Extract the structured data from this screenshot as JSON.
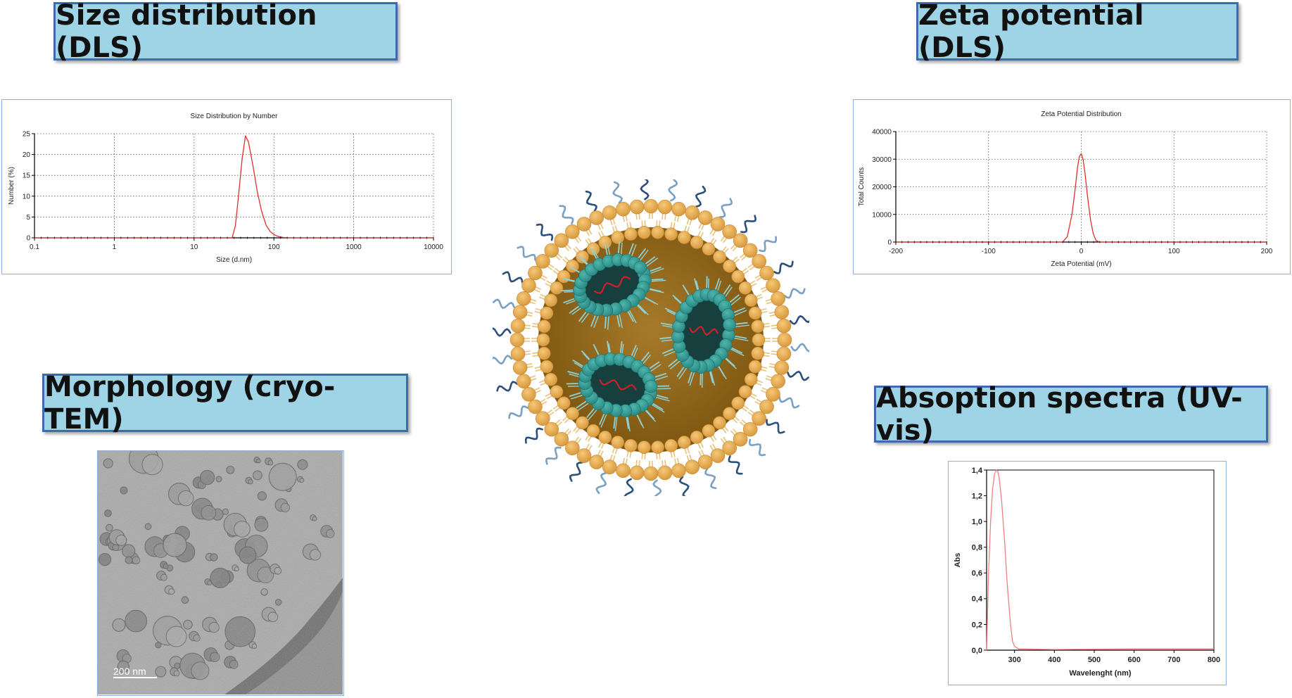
{
  "labels": {
    "size": "Size distribution (DLS)",
    "zeta": "Zeta potential (DLS)",
    "morph": "Morphology (cryo-TEM)",
    "uv": "Absoption spectra (UV-vis)"
  },
  "tem_scale": "200  nm",
  "colors": {
    "label_bg": "#9fd4e6",
    "label_border": "#3d6bb0",
    "curve": "#e03030",
    "uv_curve": "#f08080"
  },
  "chart_data": [
    {
      "id": "size",
      "type": "line",
      "title": "Size Distribution by Number",
      "xlabel": "Size (d.nm)",
      "ylabel": "Number (%)",
      "xscale": "log",
      "xlim": [
        0.1,
        10000
      ],
      "ylim": [
        0,
        25
      ],
      "xticks": [
        "0.1",
        "1",
        "10",
        "100",
        "1000",
        "10000"
      ],
      "yticks": [
        "0",
        "5",
        "10",
        "15",
        "20",
        "25"
      ],
      "grid": true,
      "series": [
        {
          "x": [
            0.1,
            30,
            33,
            36,
            40,
            44,
            48,
            55,
            62,
            70,
            80,
            90,
            100,
            110,
            130,
            160,
            10000
          ],
          "y": [
            0,
            0,
            3,
            10,
            19,
            24.5,
            23,
            17,
            11,
            6.5,
            3,
            1.5,
            0.8,
            0.4,
            0.1,
            0,
            0
          ]
        }
      ]
    },
    {
      "id": "zeta",
      "type": "line",
      "title": "Zeta Potential Distribution",
      "xlabel": "Zeta Potential (mV)",
      "ylabel": "Total Counts",
      "xlim": [
        -200,
        200
      ],
      "ylim": [
        0,
        40000
      ],
      "xticks": [
        "-200",
        "-100",
        "0",
        "100",
        "200"
      ],
      "yticks": [
        "0",
        "10000",
        "20000",
        "30000",
        "40000"
      ],
      "grid": true,
      "series": [
        {
          "x": [
            -200,
            -20,
            -15,
            -10,
            -7,
            -4,
            -2,
            0,
            2,
            4,
            7,
            10,
            13,
            16,
            20,
            200
          ],
          "y": [
            0,
            0,
            2000,
            10000,
            18000,
            27000,
            31000,
            32000,
            30000,
            25000,
            16000,
            8000,
            3000,
            500,
            0,
            0
          ]
        }
      ]
    },
    {
      "id": "uv",
      "type": "line",
      "xlabel": "Wavelenght (nm)",
      "ylabel": "Abs",
      "xlim": [
        230,
        800
      ],
      "ylim": [
        0,
        1.4
      ],
      "xticks": [
        "300",
        "400",
        "500",
        "600",
        "700",
        "800"
      ],
      "yticks": [
        "0,0",
        "0,2",
        "0,4",
        "0,6",
        "0,8",
        "1,0",
        "1,2",
        "1,4"
      ],
      "grid": false,
      "series": [
        {
          "x": [
            230,
            235,
            240,
            245,
            250,
            255,
            258,
            262,
            268,
            275,
            282,
            290,
            295,
            300,
            310,
            400,
            600,
            800
          ],
          "y": [
            0.0,
            0.6,
            1.0,
            1.25,
            1.37,
            1.4,
            1.39,
            1.33,
            1.15,
            0.85,
            0.5,
            0.2,
            0.07,
            0.03,
            0.01,
            0.005,
            0.01,
            0.01
          ]
        }
      ]
    }
  ]
}
